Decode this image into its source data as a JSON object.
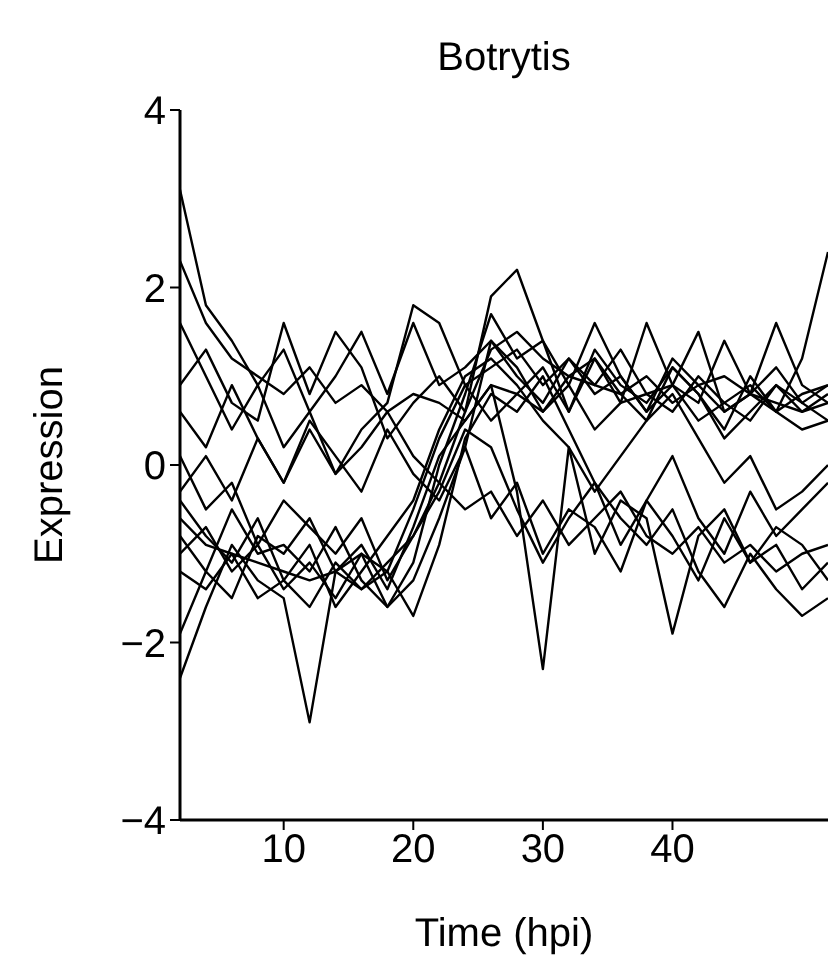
{
  "chart_data": {
    "type": "line",
    "title": "Botrytis",
    "xlabel": "Time (hpi)",
    "ylabel": "Expression",
    "x": [
      2,
      4,
      6,
      8,
      10,
      12,
      14,
      16,
      18,
      20,
      22,
      24,
      26,
      28,
      30,
      32,
      34,
      36,
      38,
      40,
      42,
      44,
      46,
      48,
      50,
      52
    ],
    "xlim": [
      2,
      52
    ],
    "xticks": [
      10,
      20,
      30,
      40
    ],
    "ylim": [
      -4,
      4
    ],
    "yticks": [
      {
        "value": -4,
        "label": "−4"
      },
      {
        "value": -2,
        "label": "−2"
      },
      0,
      2,
      4
    ],
    "grid": false,
    "legend": false,
    "marker": "none",
    "line_style": "solid",
    "series": [
      {
        "color": "#000000",
        "values": [
          -0.6,
          -0.9,
          -1.0,
          -1.1,
          -1.2,
          -1.3,
          -1.2,
          -1.4,
          -1.1,
          -0.8,
          -0.2,
          0.6,
          1.3,
          1.5,
          1.2,
          1.0,
          0.9,
          0.8,
          1.0,
          0.7,
          0.9,
          0.6,
          0.8,
          0.7,
          0.6,
          0.8
        ]
      },
      {
        "color": "#000000",
        "values": [
          -1.0,
          -0.7,
          -1.2,
          -0.9,
          -1.4,
          -1.1,
          -1.5,
          -1.0,
          -1.2,
          -0.5,
          0.3,
          0.9,
          1.1,
          1.3,
          0.9,
          1.2,
          0.8,
          1.0,
          0.6,
          0.9,
          0.5,
          0.7,
          0.9,
          0.6,
          0.4,
          0.5
        ]
      },
      {
        "color": "#000000",
        "values": [
          2.3,
          1.6,
          1.2,
          1.0,
          0.8,
          1.1,
          0.7,
          0.9,
          0.6,
          0.8,
          0.7,
          0.5,
          0.9,
          0.8,
          0.6,
          0.9,
          0.4,
          0.7,
          0.8,
          0.6,
          1.0,
          0.7,
          0.5,
          0.9,
          0.6,
          0.7
        ]
      },
      {
        "color": "#000000",
        "values": [
          3.1,
          1.8,
          1.4,
          0.9,
          1.3,
          0.6,
          1.0,
          1.5,
          0.8,
          1.6,
          0.9,
          1.1,
          1.4,
          1.0,
          0.7,
          1.2,
          0.9,
          1.3,
          0.8,
          0.9,
          1.5,
          0.6,
          0.8,
          1.1,
          0.7,
          0.9
        ]
      },
      {
        "color": "#000000",
        "values": [
          -0.3,
          0.1,
          -0.4,
          0.3,
          -0.2,
          0.4,
          -0.1,
          0.2,
          0.6,
          0.1,
          -0.2,
          -0.5,
          -0.3,
          -0.8,
          -0.4,
          -0.9,
          -0.6,
          -0.3,
          -0.8,
          -1.0,
          -0.7,
          -1.1,
          -0.9,
          -1.2,
          -1.0,
          -0.9
        ]
      },
      {
        "color": "#000000",
        "values": [
          -2.4,
          -1.6,
          -0.9,
          -1.3,
          -1.5,
          -2.9,
          -1.2,
          -1.0,
          -1.6,
          -1.3,
          -0.6,
          0.2,
          1.4,
          1.1,
          0.6,
          1.0,
          1.2,
          0.8,
          0.5,
          1.1,
          0.8,
          0.3,
          0.6,
          0.9,
          0.7,
          0.5
        ]
      },
      {
        "color": "#000000",
        "values": [
          -0.8,
          -1.2,
          -0.5,
          -1.0,
          -0.9,
          -1.2,
          -0.7,
          -1.3,
          -1.6,
          -1.1,
          0.0,
          0.8,
          1.7,
          1.2,
          1.4,
          0.6,
          1.3,
          0.9,
          0.7,
          1.1,
          0.8,
          0.4,
          1.0,
          0.6,
          0.8,
          0.9
        ]
      },
      {
        "color": "#000000",
        "values": [
          0.6,
          0.2,
          0.9,
          0.3,
          -0.2,
          0.5,
          0.1,
          -0.3,
          0.4,
          -0.1,
          -0.4,
          0.2,
          -0.6,
          -0.2,
          -1.0,
          -0.5,
          -0.7,
          -1.2,
          -0.4,
          -0.8,
          -1.3,
          -0.6,
          -1.1,
          -0.9,
          -1.4,
          -1.1
        ]
      },
      {
        "color": "#000000",
        "values": [
          -1.9,
          -1.2,
          -1.5,
          -0.8,
          -1.0,
          -0.6,
          -1.2,
          -0.9,
          -1.4,
          -0.7,
          0.1,
          0.5,
          0.9,
          -0.3,
          -2.3,
          0.2,
          -1.0,
          -0.4,
          -0.6,
          -1.9,
          -0.8,
          -0.5,
          -1.1,
          -0.7,
          -0.9,
          -1.3
        ]
      },
      {
        "color": "#000000",
        "values": [
          1.6,
          1.0,
          0.4,
          0.9,
          0.2,
          0.6,
          -0.1,
          0.4,
          0.7,
          1.8,
          1.6,
          0.9,
          0.5,
          0.8,
          1.1,
          0.6,
          1.2,
          0.7,
          1.6,
          0.9,
          0.7,
          1.4,
          0.8,
          0.6,
          1.2,
          2.4
        ]
      },
      {
        "color": "#000000",
        "values": [
          -0.4,
          -0.8,
          -1.1,
          -0.6,
          -1.3,
          -0.9,
          -1.6,
          -1.2,
          -0.8,
          -0.4,
          0.4,
          1.0,
          1.2,
          0.9,
          0.5,
          0.2,
          -0.3,
          0.1,
          0.5,
          0.8,
          0.3,
          -0.2,
          0.1,
          -0.5,
          -0.3,
          0.0
        ]
      },
      {
        "color": "#000000",
        "values": [
          0.9,
          1.3,
          0.7,
          0.5,
          1.6,
          0.8,
          1.5,
          1.1,
          0.3,
          0.7,
          1.0,
          0.6,
          1.9,
          2.2,
          1.4,
          0.9,
          1.6,
          1.0,
          0.6,
          1.2,
          0.9,
          1.0,
          0.8,
          1.6,
          0.9,
          0.7
        ]
      },
      {
        "color": "#000000",
        "values": [
          -1.2,
          -1.4,
          -1.0,
          -1.5,
          -1.3,
          -1.6,
          -1.1,
          -1.4,
          -1.2,
          -1.7,
          -0.9,
          0.3,
          0.8,
          0.6,
          1.0,
          0.4,
          -0.2,
          -0.6,
          -0.9,
          -0.5,
          -1.2,
          -1.6,
          -1.0,
          -1.4,
          -1.7,
          -1.5
        ]
      },
      {
        "color": "#000000",
        "values": [
          0.1,
          -0.5,
          -0.2,
          -0.9,
          -0.4,
          -0.7,
          -1.0,
          -0.6,
          -1.3,
          -0.8,
          -0.3,
          0.4,
          0.2,
          -0.5,
          -1.1,
          -0.6,
          -0.2,
          -0.9,
          -0.4,
          0.1,
          -0.6,
          -1.0,
          -0.3,
          -0.8,
          -0.5,
          -0.2
        ]
      }
    ]
  }
}
